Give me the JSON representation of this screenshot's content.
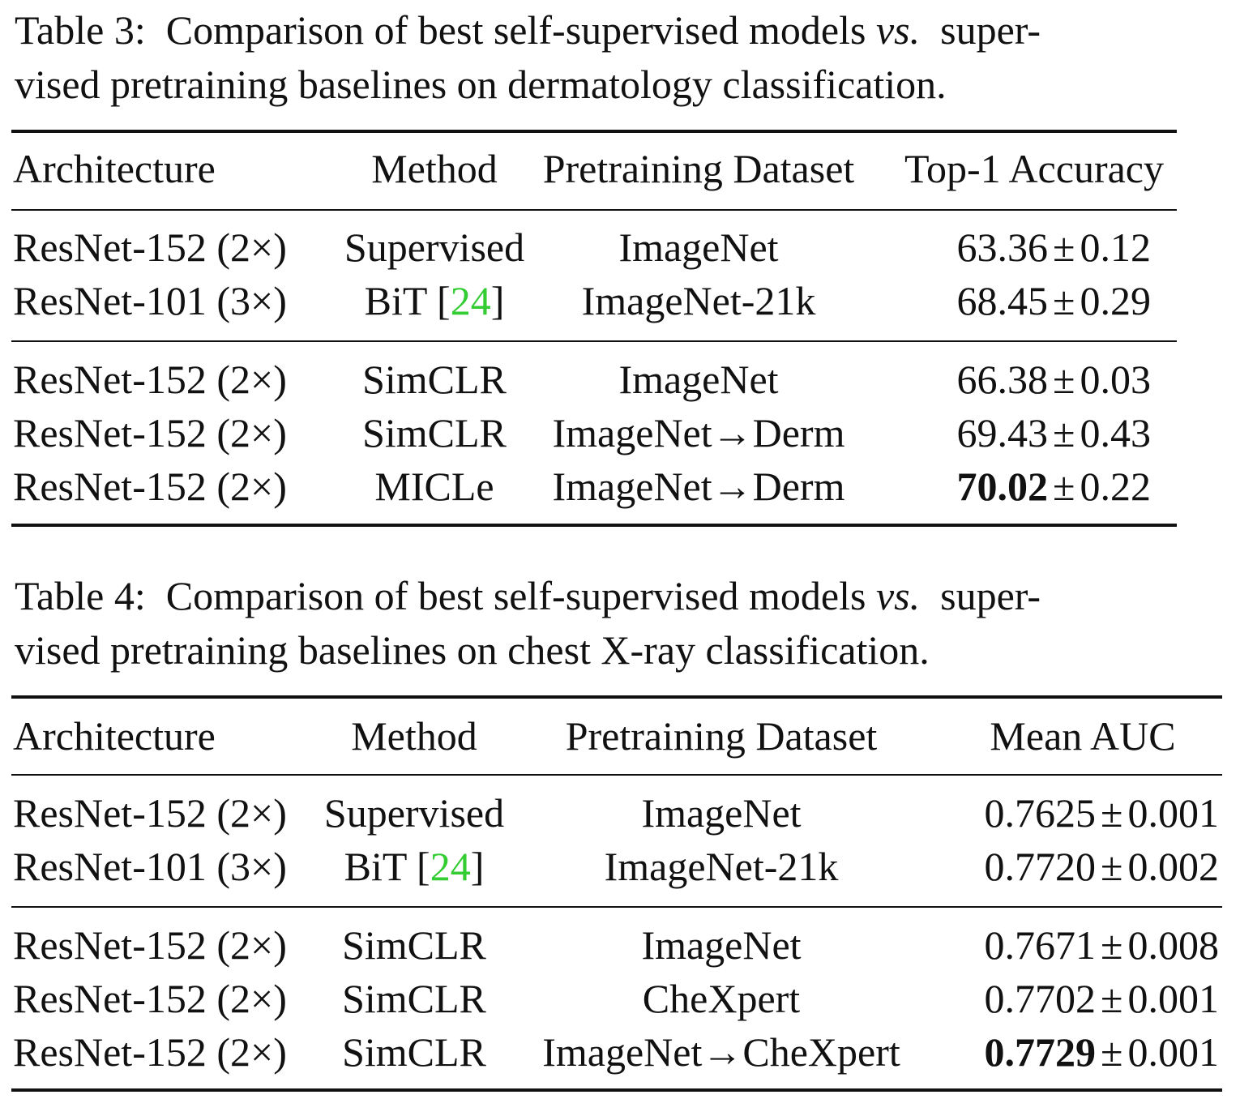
{
  "tables": [
    {
      "caption_label": "Table 3:",
      "caption_line1_pre": "Comparison of best self-supervised models",
      "caption_vs": "vs.",
      "caption_line1_post": "super-",
      "caption_line2": "vised pretraining baselines on dermatology classification.",
      "headers": [
        "Architecture",
        "Method",
        "Pretraining Dataset",
        "Top-1 Accuracy"
      ],
      "rows": [
        {
          "arch": "ResNet-152 (2×)",
          "method": "Supervised",
          "ref": "",
          "dataset": "ImageNet",
          "value": "63.36",
          "pm": "±",
          "err": "0.12",
          "bold": false
        },
        {
          "arch": "ResNet-101 (3×)",
          "method": "BiT",
          "ref": "24",
          "dataset": "ImageNet-21k",
          "value": "68.45",
          "pm": "±",
          "err": "0.29",
          "bold": false
        },
        {
          "arch": "ResNet-152 (2×)",
          "method": "SimCLR",
          "ref": "",
          "dataset": "ImageNet",
          "value": "66.38",
          "pm": "±",
          "err": "0.03",
          "bold": false
        },
        {
          "arch": "ResNet-152 (2×)",
          "method": "SimCLR",
          "ref": "",
          "dataset": "ImageNet→Derm",
          "value": "69.43",
          "pm": "±",
          "err": "0.43",
          "bold": false
        },
        {
          "arch": "ResNet-152 (2×)",
          "method": "MICLe",
          "ref": "",
          "dataset": "ImageNet→Derm",
          "value": "70.02",
          "pm": "±",
          "err": "0.22",
          "bold": true
        }
      ]
    },
    {
      "caption_label": "Table 4:",
      "caption_line1_pre": "Comparison of best self-supervised models",
      "caption_vs": "vs.",
      "caption_line1_post": "super-",
      "caption_line2": "vised pretraining baselines on chest X-ray classification.",
      "headers": [
        "Architecture",
        "Method",
        "Pretraining Dataset",
        "Mean AUC"
      ],
      "rows": [
        {
          "arch": "ResNet-152 (2×)",
          "method": "Supervised",
          "ref": "",
          "dataset": "ImageNet",
          "value": "0.7625",
          "pm": "±",
          "err": "0.001",
          "bold": false
        },
        {
          "arch": "ResNet-101 (3×)",
          "method": "BiT",
          "ref": "24",
          "dataset": "ImageNet-21k",
          "value": "0.7720",
          "pm": "±",
          "err": "0.002",
          "bold": false
        },
        {
          "arch": "ResNet-152 (2×)",
          "method": "SimCLR",
          "ref": "",
          "dataset": "ImageNet",
          "value": "0.7671",
          "pm": "±",
          "err": "0.008",
          "bold": false
        },
        {
          "arch": "ResNet-152 (2×)",
          "method": "SimCLR",
          "ref": "",
          "dataset": "CheXpert",
          "value": "0.7702",
          "pm": "±",
          "err": "0.001",
          "bold": false
        },
        {
          "arch": "ResNet-152 (2×)",
          "method": "SimCLR",
          "ref": "",
          "dataset": "ImageNet→CheXpert",
          "value": "0.7729",
          "pm": "±",
          "err": "0.001",
          "bold": true
        }
      ]
    }
  ]
}
